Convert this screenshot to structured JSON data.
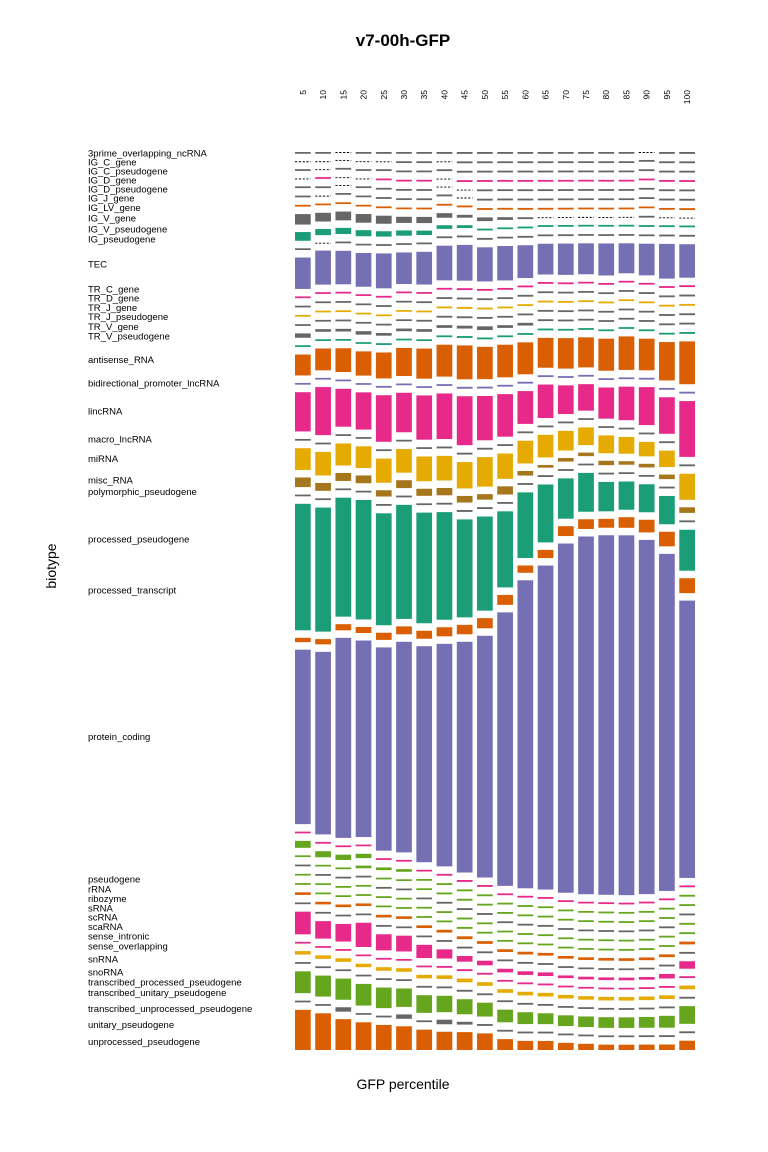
{
  "chart_data": {
    "type": "bar",
    "title": "v7-00h-GFP",
    "xlabel": "GFP percentile",
    "ylabel": "biotype",
    "columns": [
      "5",
      "10",
      "15",
      "20",
      "25",
      "30",
      "35",
      "40",
      "45",
      "50",
      "55",
      "60",
      "65",
      "70",
      "75",
      "80",
      "85",
      "90",
      "95",
      "100"
    ],
    "palette": [
      "#1b9e77",
      "#d95f02",
      "#7570b3",
      "#e7298a",
      "#66a61e",
      "#e6ab02",
      "#a6761d",
      "#666666"
    ],
    "grid": false,
    "legend": "none",
    "biotypes": [
      {
        "name": "3prime_overlapping_ncRNA",
        "color": "#666666",
        "values": [
          0.2,
          0.2,
          0.05,
          0.2,
          0.2,
          0.2,
          0.2,
          0.2,
          0.2,
          0.2,
          0.2,
          0.2,
          0.2,
          0.2,
          0.2,
          0.2,
          0.2,
          0.05,
          0.2,
          0.2
        ]
      },
      {
        "name": "IG_C_gene",
        "color": "#666666",
        "values": [
          0.05,
          0.05,
          0.05,
          0.05,
          0.05,
          0.2,
          0.2,
          0.05,
          0.2,
          0.2,
          0.2,
          0.2,
          0.2,
          0.2,
          0.2,
          0.2,
          0.2,
          0.2,
          0.2,
          0.2
        ]
      },
      {
        "name": "IG_C_pseudogene",
        "color": "#666666",
        "values": [
          0.2,
          0.05,
          0.2,
          0.2,
          0.2,
          0.2,
          0.2,
          0.2,
          0.2,
          0.2,
          0.2,
          0.2,
          0.2,
          0.2,
          0.2,
          0.2,
          0.2,
          0.2,
          0.2,
          0.2
        ]
      },
      {
        "name": "IG_D_gene",
        "color": "#e7298a",
        "values": [
          0.05,
          0.2,
          0.05,
          0.05,
          0.2,
          0.2,
          0.2,
          0.05,
          0.2,
          0.2,
          0.2,
          0.2,
          0.2,
          0.2,
          0.2,
          0.2,
          0.2,
          0.2,
          0.2,
          0.2
        ]
      },
      {
        "name": "IG_D_pseudogene",
        "color": "#666666",
        "values": [
          0.2,
          0.2,
          0.05,
          0.2,
          0.2,
          0.2,
          0.2,
          0.05,
          0.05,
          0.2,
          0.2,
          0.2,
          0.2,
          0.2,
          0.2,
          0.2,
          0.2,
          0.2,
          0.2,
          0.2
        ]
      },
      {
        "name": "IG_J_gene",
        "color": "#666666",
        "values": [
          0.2,
          0.05,
          0.2,
          0.2,
          0.2,
          0.2,
          0.2,
          0.2,
          0.05,
          0.2,
          0.2,
          0.2,
          0.2,
          0.2,
          0.2,
          0.2,
          0.2,
          0.2,
          0.2,
          0.2
        ]
      },
      {
        "name": "IG_LV_gene",
        "color": "#d95f02",
        "values": [
          0.2,
          0.2,
          0.2,
          0.2,
          0.2,
          0.2,
          0.2,
          0.2,
          0.2,
          0.2,
          0.2,
          0.2,
          0.2,
          0.2,
          0.2,
          0.2,
          0.2,
          0.2,
          0.2,
          0.2
        ]
      },
      {
        "name": "IG_V_gene",
        "color": "#666666",
        "values": [
          1.2,
          1.0,
          1.0,
          1.0,
          0.9,
          0.7,
          0.7,
          0.5,
          0.3,
          0.4,
          0.3,
          0.2,
          0.05,
          0.05,
          0.05,
          0.05,
          0.05,
          0.2,
          0.05,
          0.05
        ]
      },
      {
        "name": "IG_V_pseudogene",
        "color": "#1b9e77",
        "values": [
          1.0,
          0.7,
          0.7,
          0.7,
          0.6,
          0.6,
          0.5,
          0.4,
          0.3,
          0.2,
          0.2,
          0.2,
          0.2,
          0.2,
          0.2,
          0.2,
          0.2,
          0.2,
          0.2,
          0.2
        ]
      },
      {
        "name": "IG_pseudogene",
        "color": "#666666",
        "values": [
          0.2,
          0.05,
          0.2,
          0.2,
          0.2,
          0.2,
          0.2,
          0.2,
          0.2,
          0.2,
          0.2,
          0.2,
          0.2,
          0.2,
          0.2,
          0.2,
          0.2,
          0.2,
          0.2,
          0.2
        ]
      },
      {
        "name": "TEC",
        "color": "#7570b3",
        "values": [
          3.6,
          3.9,
          3.8,
          3.9,
          3.9,
          3.6,
          3.7,
          3.8,
          3.8,
          3.7,
          3.8,
          3.6,
          3.4,
          3.5,
          3.5,
          3.6,
          3.4,
          3.5,
          3.8,
          3.6
        ]
      },
      {
        "name": "TR_C_gene",
        "color": "#e7298a",
        "values": [
          0.2,
          0.2,
          0.2,
          0.2,
          0.2,
          0.2,
          0.2,
          0.2,
          0.2,
          0.2,
          0.2,
          0.2,
          0.2,
          0.2,
          0.2,
          0.2,
          0.2,
          0.2,
          0.2,
          0.2
        ]
      },
      {
        "name": "TR_D_gene",
        "color": "#666666",
        "values": [
          0.2,
          0.2,
          0.2,
          0.2,
          0.2,
          0.2,
          0.2,
          0.2,
          0.2,
          0.2,
          0.2,
          0.2,
          0.2,
          0.2,
          0.2,
          0.2,
          0.2,
          0.2,
          0.2,
          0.2
        ]
      },
      {
        "name": "TR_J_gene",
        "color": "#e6ab02",
        "values": [
          0.2,
          0.2,
          0.2,
          0.2,
          0.2,
          0.2,
          0.2,
          0.2,
          0.2,
          0.2,
          0.2,
          0.2,
          0.2,
          0.2,
          0.2,
          0.2,
          0.2,
          0.2,
          0.2,
          0.2
        ]
      },
      {
        "name": "TR_J_pseudogene",
        "color": "#666666",
        "values": [
          0.2,
          0.2,
          0.2,
          0.2,
          0.2,
          0.2,
          0.2,
          0.2,
          0.2,
          0.2,
          0.2,
          0.2,
          0.2,
          0.2,
          0.2,
          0.2,
          0.2,
          0.2,
          0.2,
          0.2
        ]
      },
      {
        "name": "TR_V_gene",
        "color": "#666666",
        "values": [
          0.5,
          0.3,
          0.3,
          0.4,
          0.3,
          0.3,
          0.3,
          0.3,
          0.3,
          0.4,
          0.3,
          0.3,
          0.2,
          0.2,
          0.2,
          0.2,
          0.2,
          0.2,
          0.2,
          0.2
        ]
      },
      {
        "name": "TR_V_pseudogene",
        "color": "#1b9e77",
        "values": [
          0.2,
          0.2,
          0.2,
          0.2,
          0.2,
          0.2,
          0.2,
          0.2,
          0.2,
          0.2,
          0.2,
          0.2,
          0.2,
          0.2,
          0.2,
          0.2,
          0.2,
          0.2,
          0.2,
          0.2
        ]
      },
      {
        "name": "antisense_RNA",
        "color": "#d95f02",
        "values": [
          2.4,
          2.5,
          2.7,
          2.8,
          2.9,
          3.2,
          3.4,
          3.5,
          3.6,
          3.5,
          3.6,
          3.5,
          3.3,
          3.4,
          3.4,
          3.6,
          3.8,
          3.5,
          4.2,
          4.6
        ]
      },
      {
        "name": "bidirectional_promoter_lncRNA",
        "color": "#7570b3",
        "values": [
          0.2,
          0.2,
          0.2,
          0.2,
          0.2,
          0.2,
          0.2,
          0.2,
          0.2,
          0.2,
          0.2,
          0.2,
          0.2,
          0.2,
          0.2,
          0.2,
          0.2,
          0.2,
          0.2,
          0.2
        ]
      },
      {
        "name": "lincRNA",
        "color": "#e7298a",
        "values": [
          4.5,
          5.5,
          4.3,
          4.3,
          5.2,
          4.5,
          5.0,
          5.0,
          5.2,
          4.8,
          4.7,
          3.6,
          3.7,
          3.2,
          3.0,
          3.5,
          3.8,
          4.2,
          4.0,
          6.0
        ]
      },
      {
        "name": "macro_lncRNA",
        "color": "#666666",
        "values": [
          0.2,
          0.2,
          0.2,
          0.2,
          0.2,
          0.2,
          0.2,
          0.2,
          0.2,
          0.2,
          0.2,
          0.2,
          0.2,
          0.2,
          0.2,
          0.2,
          0.2,
          0.2,
          0.2,
          0.2
        ]
      },
      {
        "name": "miRNA",
        "color": "#e6ab02",
        "values": [
          2.5,
          2.7,
          2.5,
          2.5,
          2.7,
          2.7,
          2.8,
          2.7,
          2.8,
          3.2,
          2.8,
          2.5,
          2.5,
          2.2,
          2.0,
          2.0,
          1.9,
          1.6,
          1.8,
          2.8
        ]
      },
      {
        "name": "misc_RNA",
        "color": "#a6761d",
        "values": [
          1.1,
          0.9,
          0.9,
          0.9,
          0.7,
          0.9,
          0.8,
          0.8,
          0.7,
          0.6,
          0.9,
          0.5,
          0.3,
          0.4,
          0.4,
          0.5,
          0.4,
          0.4,
          0.5,
          0.6
        ]
      },
      {
        "name": "polymorphic_pseudogene",
        "color": "#666666",
        "values": [
          0.2,
          0.2,
          0.2,
          0.2,
          0.2,
          0.2,
          0.2,
          0.2,
          0.2,
          0.2,
          0.2,
          0.2,
          0.2,
          0.2,
          0.2,
          0.2,
          0.2,
          0.2,
          0.2,
          0.2
        ]
      },
      {
        "name": "processed_pseudogene",
        "color": "#1b9e77",
        "values": [
          14.5,
          14.2,
          13.5,
          13.8,
          12.5,
          13.0,
          12.5,
          11.8,
          10.4,
          10.2,
          8.4,
          7.2,
          6.4,
          4.5,
          4.4,
          3.3,
          3.2,
          3.1,
          3.1,
          4.4
        ]
      },
      {
        "name": "processed_transcript",
        "color": "#d95f02",
        "values": [
          0.5,
          0.6,
          0.7,
          0.7,
          0.8,
          0.9,
          0.9,
          1.0,
          1.0,
          1.1,
          1.1,
          0.8,
          0.9,
          1.1,
          1.1,
          1.0,
          1.2,
          1.4,
          1.6,
          1.6
        ]
      },
      {
        "name": "protein_coding",
        "color": "#7570b3",
        "values": [
          20.0,
          20.9,
          22.7,
          22.7,
          22.7,
          24.0,
          24.4,
          24.4,
          24.5,
          26.2,
          30.2,
          33.8,
          35.8,
          39.0,
          40.5,
          40.4,
          40.8,
          39.2,
          36.9,
          29.8
        ]
      },
      {
        "name": "pseudogene",
        "color": "#e7298a",
        "values": [
          0.2,
          0.2,
          0.2,
          0.2,
          0.2,
          0.2,
          0.2,
          0.2,
          0.2,
          0.2,
          0.2,
          0.2,
          0.2,
          0.2,
          0.2,
          0.2,
          0.2,
          0.2,
          0.2,
          0.2
        ]
      },
      {
        "name": "rRNA",
        "color": "#66a61e",
        "values": [
          0.8,
          0.7,
          0.6,
          0.5,
          0.3,
          0.3,
          0.2,
          0.2,
          0.2,
          0.2,
          0.2,
          0.2,
          0.2,
          0.2,
          0.2,
          0.2,
          0.2,
          0.2,
          0.2,
          0.2
        ]
      },
      {
        "name": "ribozyme",
        "color": "#66a61e",
        "values": [
          0.2,
          0.2,
          0.2,
          0.3,
          0.2,
          0.2,
          0.2,
          0.2,
          0.2,
          0.2,
          0.2,
          0.2,
          0.2,
          0.2,
          0.2,
          0.2,
          0.2,
          0.2,
          0.2,
          0.2
        ]
      },
      {
        "name": "sRNA",
        "color": "#666666",
        "values": [
          0.2,
          0.2,
          0.2,
          0.2,
          0.2,
          0.2,
          0.2,
          0.2,
          0.2,
          0.2,
          0.2,
          0.2,
          0.2,
          0.2,
          0.2,
          0.2,
          0.2,
          0.2,
          0.2,
          0.2
        ]
      },
      {
        "name": "scRNA",
        "color": "#66a61e",
        "values": [
          0.2,
          0.2,
          0.2,
          0.2,
          0.2,
          0.2,
          0.2,
          0.2,
          0.2,
          0.2,
          0.2,
          0.2,
          0.2,
          0.2,
          0.2,
          0.2,
          0.2,
          0.2,
          0.2,
          0.2
        ]
      },
      {
        "name": "scaRNA",
        "color": "#66a61e",
        "values": [
          0.2,
          0.2,
          0.2,
          0.2,
          0.2,
          0.2,
          0.2,
          0.2,
          0.2,
          0.2,
          0.2,
          0.2,
          0.2,
          0.2,
          0.2,
          0.2,
          0.2,
          0.2,
          0.2,
          0.2
        ]
      },
      {
        "name": "sense_intronic",
        "color": "#d95f02",
        "values": [
          0.3,
          0.3,
          0.3,
          0.3,
          0.3,
          0.3,
          0.3,
          0.3,
          0.3,
          0.3,
          0.3,
          0.3,
          0.3,
          0.3,
          0.3,
          0.3,
          0.3,
          0.3,
          0.3,
          0.3
        ]
      },
      {
        "name": "sense_overlapping",
        "color": "#666666",
        "values": [
          0.2,
          0.2,
          0.2,
          0.2,
          0.2,
          0.2,
          0.2,
          0.2,
          0.2,
          0.2,
          0.2,
          0.2,
          0.2,
          0.2,
          0.2,
          0.2,
          0.2,
          0.2,
          0.2,
          0.2
        ]
      },
      {
        "name": "snRNA",
        "color": "#e7298a",
        "values": [
          2.6,
          2.0,
          2.0,
          2.8,
          1.8,
          1.8,
          1.5,
          1.0,
          0.6,
          0.5,
          0.4,
          0.4,
          0.4,
          0.3,
          0.3,
          0.3,
          0.3,
          0.3,
          0.5,
          0.8
        ]
      },
      {
        "name": "snoRNA",
        "color": "#e7298a",
        "values": [
          0.2,
          0.2,
          0.2,
          0.2,
          0.2,
          0.2,
          0.2,
          0.2,
          0.2,
          0.2,
          0.2,
          0.2,
          0.2,
          0.2,
          0.2,
          0.2,
          0.2,
          0.2,
          0.2,
          0.2
        ]
      },
      {
        "name": "transcribed_processed_pseudogene",
        "color": "#e6ab02",
        "values": [
          0.4,
          0.4,
          0.4,
          0.4,
          0.4,
          0.4,
          0.4,
          0.4,
          0.4,
          0.4,
          0.4,
          0.4,
          0.4,
          0.4,
          0.4,
          0.4,
          0.4,
          0.4,
          0.4,
          0.4
        ]
      },
      {
        "name": "transcribed_unitary_pseudogene",
        "color": "#666666",
        "values": [
          0.2,
          0.2,
          0.2,
          0.2,
          0.2,
          0.2,
          0.2,
          0.2,
          0.2,
          0.2,
          0.2,
          0.2,
          0.2,
          0.2,
          0.2,
          0.2,
          0.2,
          0.2,
          0.2,
          0.2
        ]
      },
      {
        "name": "transcribed_unprocessed_pseudogene",
        "color": "#66a61e",
        "values": [
          2.5,
          2.4,
          2.4,
          2.5,
          2.3,
          2.1,
          2.0,
          1.8,
          1.6,
          1.5,
          1.4,
          1.3,
          1.2,
          1.2,
          1.2,
          1.2,
          1.2,
          1.2,
          1.3,
          1.9
        ]
      },
      {
        "name": "unitary_pseudogene",
        "color": "#666666",
        "values": [
          0.2,
          0.2,
          0.5,
          0.2,
          0.2,
          0.5,
          0.2,
          0.5,
          0.3,
          0.2,
          0.2,
          0.2,
          0.2,
          0.2,
          0.2,
          0.2,
          0.2,
          0.2,
          0.2,
          0.2
        ]
      },
      {
        "name": "unprocessed_pseudogene",
        "color": "#d95f02",
        "values": [
          4.6,
          4.2,
          3.5,
          3.2,
          2.8,
          2.7,
          2.3,
          2.0,
          1.9,
          1.8,
          1.2,
          1.0,
          1.0,
          0.8,
          0.7,
          0.6,
          0.6,
          0.6,
          0.6,
          1.0
        ]
      }
    ]
  }
}
